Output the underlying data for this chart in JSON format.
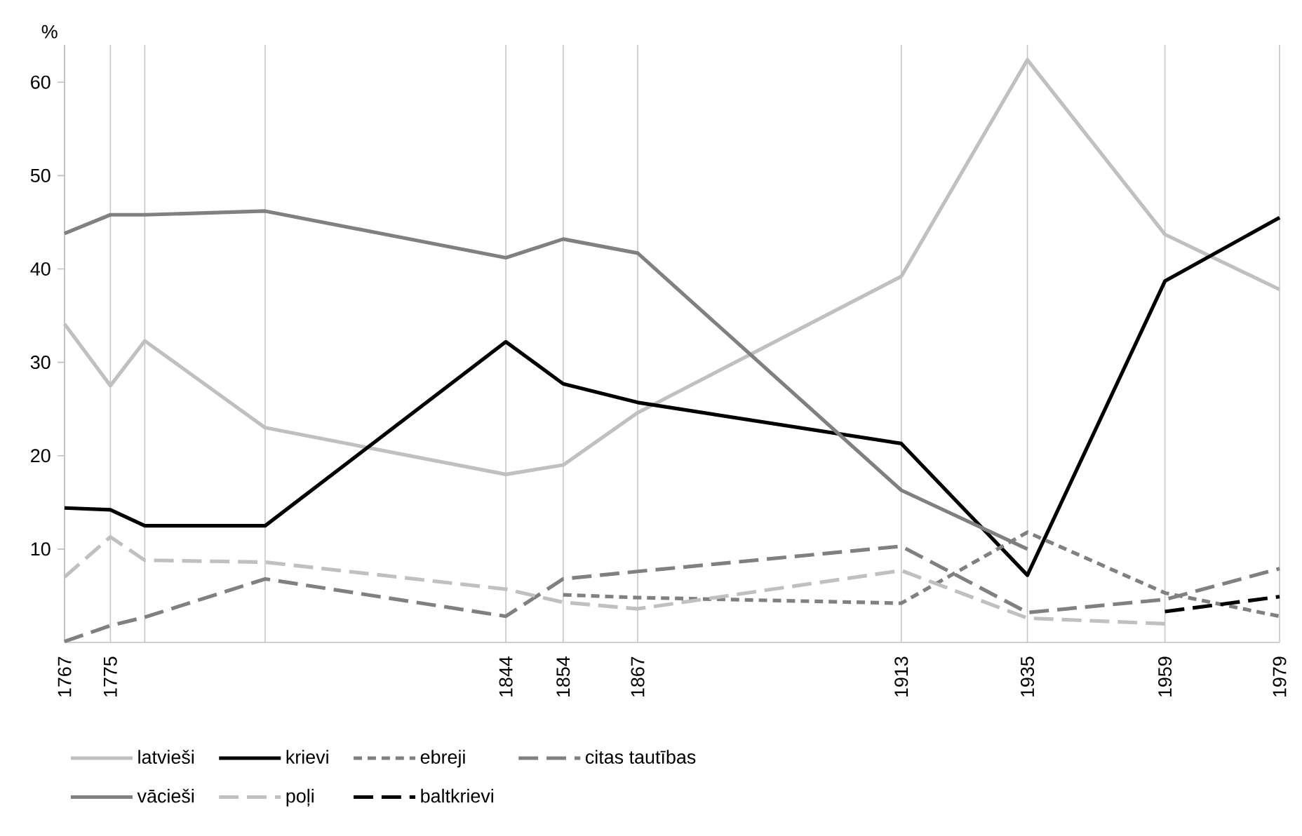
{
  "chart_data": {
    "type": "line",
    "ylabel": "%",
    "x": [
      1767,
      1775,
      1781,
      1802,
      1844,
      1854,
      1867,
      1913,
      1935,
      1959,
      1979
    ],
    "series": [
      {
        "name": "latvieši",
        "color": "#c0c0c0",
        "line_style": "solid",
        "values": [
          34.1,
          27.5,
          32.3,
          23.0,
          18.0,
          19.0,
          24.6,
          39.2,
          62.4,
          43.7,
          37.8
        ]
      },
      {
        "name": "krievi",
        "color": "#000000",
        "line_style": "solid",
        "values": [
          14.4,
          14.2,
          12.5,
          12.5,
          32.2,
          27.7,
          25.7,
          21.3,
          7.2,
          38.7,
          45.5
        ]
      },
      {
        "name": "ebreji",
        "color": "#808080",
        "line_style": "dotted",
        "values": [
          null,
          null,
          null,
          null,
          null,
          5.1,
          4.8,
          4.2,
          11.8,
          5.3,
          2.8
        ]
      },
      {
        "name": "citas tautības",
        "color": "#808080",
        "line_style": "dashed",
        "values": [
          0.1,
          1.8,
          2.7,
          6.8,
          2.8,
          6.8,
          7.6,
          10.3,
          3.2,
          4.6,
          7.9
        ]
      },
      {
        "name": "vācieši",
        "color": "#808080",
        "line_style": "solid",
        "values": [
          43.8,
          45.8,
          45.8,
          46.2,
          41.2,
          43.2,
          41.7,
          16.3,
          10.0,
          null,
          null
        ]
      },
      {
        "name": "poļi",
        "color": "#c0c0c0",
        "line_style": "dashed",
        "values": [
          7.0,
          11.3,
          8.8,
          8.6,
          5.7,
          4.3,
          3.6,
          7.7,
          2.6,
          2.0,
          null
        ]
      },
      {
        "name": "baltkrievi",
        "color": "#000000",
        "line_style": "dashed",
        "values": [
          null,
          null,
          null,
          null,
          null,
          null,
          null,
          null,
          null,
          3.3,
          4.9
        ]
      }
    ],
    "xlim": [
      1767,
      1979
    ],
    "xticks": [
      1767,
      1775,
      {
        "value": 1781,
        "label": null
      },
      {
        "value": 1802,
        "label": null
      },
      1844,
      1854,
      1867,
      1913,
      1935,
      1959,
      1979
    ],
    "ylim": [
      0,
      64
    ],
    "yticks": [
      10,
      20,
      30,
      40,
      50,
      60
    ],
    "grid": "x",
    "legend": "bottom"
  }
}
